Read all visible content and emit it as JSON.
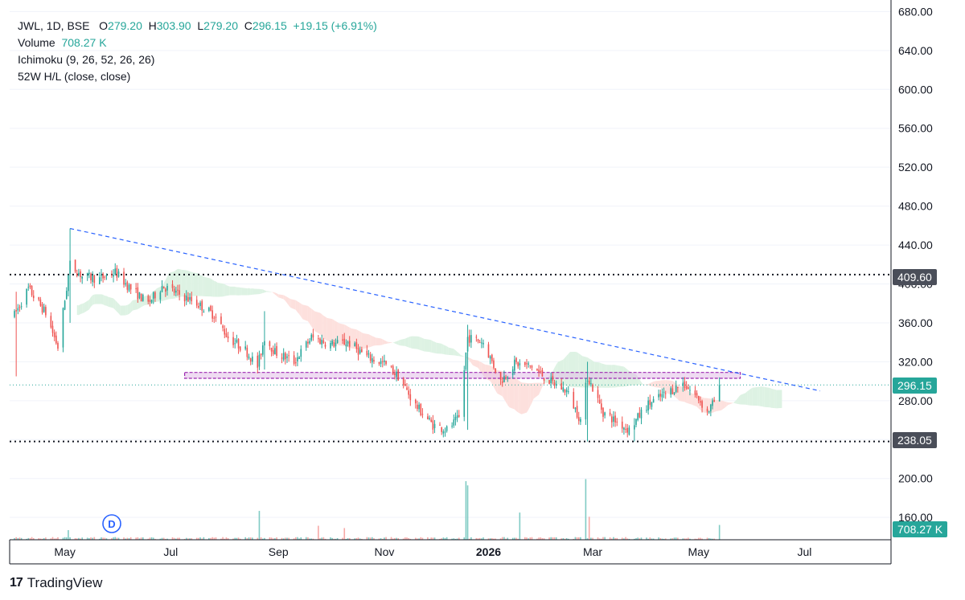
{
  "legend": {
    "symbol": "JWL, 1D, BSE",
    "o_label": "O",
    "o_value": "279.20",
    "h_label": "H",
    "h_value": "303.90",
    "l_label": "L",
    "l_value": "279.20",
    "c_label": "C",
    "c_value": "296.15",
    "change": "+19.15 (+6.91%)",
    "volume_label": "Volume",
    "volume_value": "708.27 K",
    "ichimoku": "Ichimoku (9, 26, 52, 26, 26)",
    "hl52": "52W H/L (close, close)"
  },
  "badges": {
    "high52": "409.60",
    "last_price": "296.15",
    "low52": "238.05",
    "volume": "708.27 K"
  },
  "event_marker": "D",
  "brand": "TradingView",
  "colors": {
    "up": "#26a69a",
    "down": "#ef5350",
    "cloud_bear": "#fde0dd",
    "cloud_bull": "#ddf2e3",
    "trendline": "#2962ff",
    "zone_fill": "#e1bee7",
    "zone_border": "#9c27b0",
    "hl_line": "#131722",
    "badge_dark": "#4a4e59"
  },
  "chart_data": {
    "type": "candlestick",
    "symbol": "JWL",
    "interval": "1D",
    "exchange": "BSE",
    "y_axis": {
      "ticks": [
        "160.00",
        "200.00",
        "240.00",
        "280.00",
        "320.00",
        "360.00",
        "400.00",
        "440.00",
        "480.00",
        "520.00",
        "560.00",
        "600.00",
        "640.00",
        "680.00"
      ],
      "range": [
        137,
        682
      ]
    },
    "x_axis": {
      "labels": [
        "May",
        "Jul",
        "Sep",
        "Nov",
        "2026",
        "Mar",
        "May",
        "Jul"
      ]
    },
    "last_bar": {
      "open": 279.2,
      "high": 303.9,
      "low": 279.2,
      "close": 296.15,
      "change": 19.15,
      "change_pct": 6.91,
      "volume_k": 708.27
    },
    "high_52w": 409.6,
    "low_52w": 238.05,
    "last_price_line": 296.15,
    "trendline": {
      "from": {
        "date": "2025-05-09",
        "price": 457
      },
      "to": {
        "date": "2026-07-15",
        "price": 290
      }
    },
    "resistance_zone": {
      "from": "2025-07-14",
      "to": "2026-05-30",
      "top": 309,
      "bottom": 303
    },
    "price_path": [
      [
        "2025-04-07",
        368
      ],
      [
        "2025-04-15",
        395
      ],
      [
        "2025-04-25",
        370
      ],
      [
        "2025-05-02",
        335
      ],
      [
        "2025-05-09",
        420
      ],
      [
        "2025-05-16",
        408
      ],
      [
        "2025-05-26",
        405
      ],
      [
        "2025-06-04",
        412
      ],
      [
        "2025-06-13",
        395
      ],
      [
        "2025-06-23",
        380
      ],
      [
        "2025-07-01",
        398
      ],
      [
        "2025-07-10",
        390
      ],
      [
        "2025-07-21",
        380
      ],
      [
        "2025-07-31",
        368
      ],
      [
        "2025-08-08",
        345
      ],
      [
        "2025-08-18",
        332
      ],
      [
        "2025-08-25",
        315
      ],
      [
        "2025-08-29",
        345
      ],
      [
        "2025-09-04",
        330
      ],
      [
        "2025-09-15",
        320
      ],
      [
        "2025-09-25",
        345
      ],
      [
        "2025-10-06",
        338
      ],
      [
        "2025-10-16",
        340
      ],
      [
        "2025-10-27",
        325
      ],
      [
        "2025-11-06",
        318
      ],
      [
        "2025-11-14",
        305
      ],
      [
        "2025-11-24",
        275
      ],
      [
        "2025-12-04",
        255
      ],
      [
        "2025-12-12",
        250
      ],
      [
        "2025-12-19",
        262
      ],
      [
        "2025-12-24",
        345
      ],
      [
        "2026-01-02",
        340
      ],
      [
        "2026-01-12",
        300
      ],
      [
        "2026-01-20",
        318
      ],
      [
        "2026-01-30",
        315
      ],
      [
        "2026-02-09",
        300
      ],
      [
        "2026-02-19",
        290
      ],
      [
        "2026-02-27",
        260
      ],
      [
        "2026-03-03",
        305
      ],
      [
        "2026-03-12",
        268
      ],
      [
        "2026-03-20",
        258
      ],
      [
        "2026-03-27",
        250
      ],
      [
        "2026-04-06",
        275
      ],
      [
        "2026-04-15",
        285
      ],
      [
        "2026-04-27",
        298
      ],
      [
        "2026-05-06",
        282
      ],
      [
        "2026-05-11",
        268
      ],
      [
        "2026-05-15",
        279
      ],
      [
        "2026-05-18",
        296.15
      ]
    ],
    "volume_spikes_k": [
      [
        "2025-05-08",
        460
      ],
      [
        "2025-08-26",
        1380
      ],
      [
        "2025-09-29",
        670
      ],
      [
        "2025-10-14",
        560
      ],
      [
        "2025-12-23",
        2800
      ],
      [
        "2025-12-24",
        2600
      ],
      [
        "2026-01-23",
        1300
      ],
      [
        "2026-03-02",
        2900
      ],
      [
        "2026-03-04",
        1100
      ],
      [
        "2026-05-18",
        708.27
      ]
    ]
  }
}
